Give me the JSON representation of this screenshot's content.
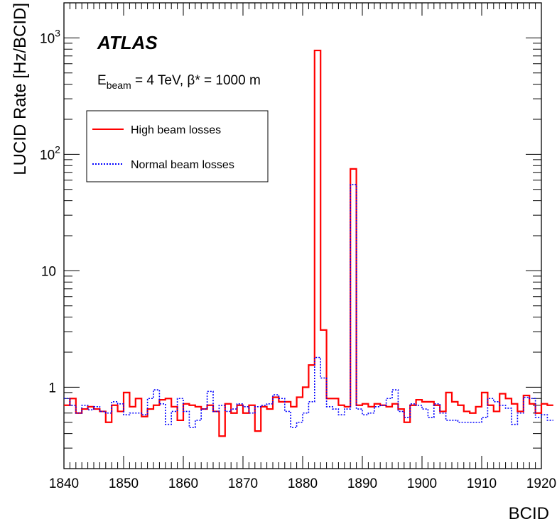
{
  "chart_data": {
    "type": "line",
    "style": "step-histogram",
    "xlabel": "BCID",
    "ylabel": "LUCID Rate [Hz/BCID]",
    "xlim": [
      1840,
      1920
    ],
    "ylim": [
      0.2,
      2000
    ],
    "yscale": "log",
    "x_ticks": [
      "1840",
      "1850",
      "1860",
      "1870",
      "1880",
      "1890",
      "1900",
      "1910",
      "1920"
    ],
    "y_ticks": [
      {
        "value": 1,
        "label": "1"
      },
      {
        "value": 10,
        "label": "10"
      },
      {
        "value": 100,
        "label": "10",
        "exp": "2"
      },
      {
        "value": 1000,
        "label": "10",
        "exp": "3"
      }
    ],
    "x_start": 1840,
    "legend_position": "top-left",
    "annotations": {
      "experiment": "ATLAS",
      "energy": {
        "e": "E",
        "sub": "beam",
        "rest": " = 4 TeV, β* = 1000 m"
      }
    },
    "series": [
      {
        "name": "High beam losses",
        "color": "#ff0000",
        "linestyle": "solid",
        "values": [
          0.7,
          0.8,
          0.6,
          0.65,
          0.68,
          0.65,
          0.62,
          0.5,
          0.7,
          0.62,
          0.9,
          0.68,
          0.8,
          0.56,
          0.65,
          0.7,
          0.78,
          0.8,
          0.68,
          0.52,
          0.72,
          0.7,
          0.68,
          0.65,
          0.7,
          0.62,
          0.38,
          0.72,
          0.6,
          0.7,
          0.6,
          0.7,
          0.42,
          0.68,
          0.65,
          0.82,
          0.75,
          0.75,
          0.68,
          0.82,
          1.0,
          1.55,
          780,
          3.1,
          0.8,
          0.8,
          0.7,
          0.68,
          75,
          0.7,
          0.72,
          0.68,
          0.72,
          0.7,
          0.68,
          0.72,
          0.65,
          0.5,
          0.7,
          0.78,
          0.75,
          0.75,
          0.7,
          0.62,
          0.9,
          0.75,
          0.7,
          0.62,
          0.6,
          0.68,
          0.9,
          0.7,
          0.62,
          0.88,
          0.8,
          0.72,
          0.62,
          0.85,
          0.72,
          0.6,
          0.72,
          0.7
        ]
      },
      {
        "name": "Normal beam losses",
        "color": "#0000ff",
        "linestyle": "dotted",
        "values": [
          0.8,
          0.7,
          0.6,
          0.7,
          0.64,
          0.68,
          0.62,
          0.6,
          0.75,
          0.72,
          0.58,
          0.6,
          0.6,
          0.58,
          0.8,
          0.95,
          0.72,
          0.48,
          0.62,
          0.8,
          0.62,
          0.45,
          0.52,
          0.65,
          0.92,
          0.62,
          0.7,
          0.62,
          0.65,
          0.72,
          0.68,
          0.6,
          0.68,
          0.7,
          0.72,
          0.86,
          0.8,
          0.62,
          0.45,
          0.5,
          0.6,
          0.75,
          1.8,
          1.2,
          0.68,
          0.65,
          0.58,
          0.65,
          55,
          0.65,
          0.58,
          0.6,
          0.68,
          0.7,
          0.8,
          0.95,
          0.62,
          0.55,
          0.72,
          0.7,
          0.65,
          0.55,
          0.72,
          0.6,
          0.52,
          0.52,
          0.5,
          0.5,
          0.5,
          0.5,
          0.55,
          0.8,
          0.75,
          0.7,
          0.66,
          0.48,
          0.6,
          0.82,
          0.8,
          0.55,
          0.58,
          0.52
        ]
      }
    ]
  }
}
